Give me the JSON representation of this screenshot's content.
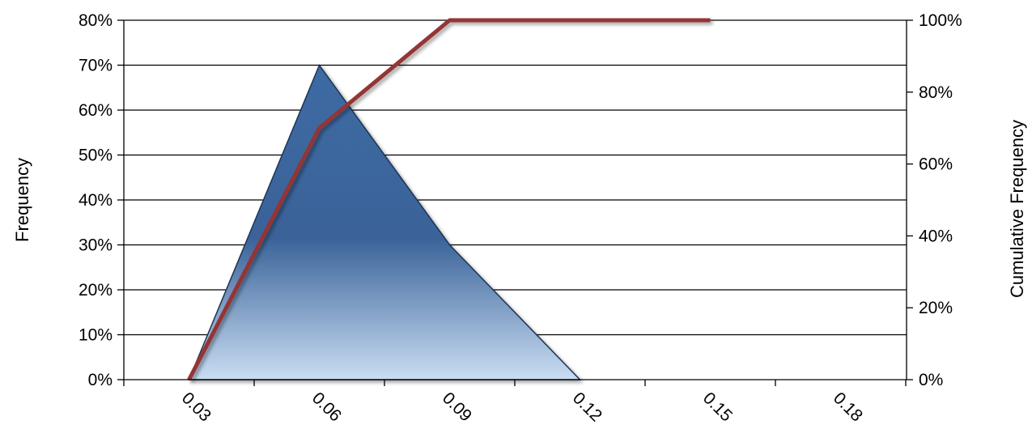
{
  "chart_data": {
    "type": "area",
    "x_ticks": [
      "0.03",
      "0.06",
      "0.09",
      "0.12",
      "0.15",
      "0.18"
    ],
    "ylabel": "Frequency",
    "y2label": "Cumulative Frequency",
    "y_ticks": [
      "0%",
      "10%",
      "20%",
      "30%",
      "40%",
      "50%",
      "60%",
      "70%",
      "80%"
    ],
    "y2_ticks": [
      "0%",
      "20%",
      "40%",
      "60%",
      "80%",
      "100%"
    ],
    "ylim": [
      0,
      0.8
    ],
    "y2lim": [
      0,
      1.0
    ],
    "series": [
      {
        "type": "area",
        "axis": "left",
        "x": [
          0.03,
          0.06,
          0.09,
          0.12
        ],
        "values": [
          0.0,
          0.7,
          0.3,
          0.0
        ]
      },
      {
        "type": "line",
        "axis": "right",
        "x": [
          0.03,
          0.06,
          0.09,
          0.12,
          0.15
        ],
        "values": [
          0.0,
          0.7,
          1.0,
          1.0,
          1.0
        ]
      }
    ],
    "grid": true,
    "colors": {
      "area_top": "#3a6399",
      "area_bottom": "#c6daf0",
      "line": "#943634",
      "grid": "#000000"
    }
  }
}
